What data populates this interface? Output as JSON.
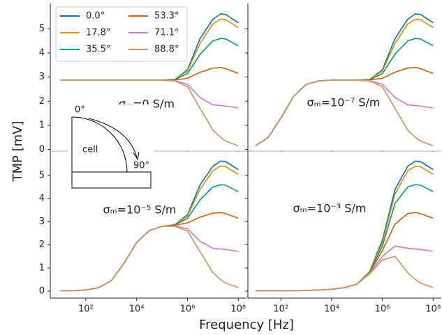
{
  "figure": {
    "xlabel": "Frequency [Hz]",
    "ylabel": "TMP [mV]"
  },
  "inset": {
    "start_label": "0°",
    "end_label": "90°",
    "cell_label": "cell"
  },
  "chart_data": [
    {
      "type": "line",
      "annotation": "σₘ=0 S/m",
      "x_scale": "log",
      "legend": "upper left",
      "xtick_labels": false,
      "ytick_labels": true,
      "xlim": [
        4,
        210000000
      ],
      "ylim": [
        -0.3,
        6.05
      ],
      "xticks": [
        {
          "value": 100,
          "label": "10²"
        },
        {
          "value": 10000,
          "label": "10⁴"
        },
        {
          "value": 1000000,
          "label": "10⁶"
        },
        {
          "value": 100000000,
          "label": "10⁸"
        }
      ],
      "yticks": [
        0,
        1,
        2,
        3,
        4,
        5
      ],
      "x": [
        10,
        31.6,
        100,
        316,
        1000,
        3160,
        10000,
        31600,
        100000,
        316000,
        1000000,
        3160000,
        10000000,
        20000000,
        31600000,
        100000000
      ],
      "series": [
        {
          "name": "0.0°",
          "color": "#0173b2",
          "values": [
            2.87,
            2.87,
            2.87,
            2.87,
            2.87,
            2.87,
            2.87,
            2.87,
            2.87,
            2.9,
            3.3,
            4.6,
            5.4,
            5.62,
            5.6,
            5.25
          ]
        },
        {
          "name": "17.8°",
          "color": "#de8f05",
          "values": [
            2.87,
            2.87,
            2.87,
            2.87,
            2.87,
            2.87,
            2.87,
            2.87,
            2.87,
            2.9,
            3.25,
            4.4,
            5.2,
            5.4,
            5.38,
            5.05
          ]
        },
        {
          "name": "35.5°",
          "color": "#029e73",
          "values": [
            2.87,
            2.87,
            2.87,
            2.87,
            2.87,
            2.87,
            2.87,
            2.87,
            2.87,
            2.89,
            3.15,
            3.95,
            4.5,
            4.6,
            4.58,
            4.3
          ]
        },
        {
          "name": "53.3°",
          "color": "#d55e00",
          "values": [
            2.87,
            2.87,
            2.87,
            2.87,
            2.87,
            2.87,
            2.87,
            2.87,
            2.87,
            2.88,
            2.95,
            3.2,
            3.37,
            3.4,
            3.35,
            3.15
          ]
        },
        {
          "name": "71.1°",
          "color": "#cc78bc",
          "values": [
            2.87,
            2.87,
            2.87,
            2.87,
            2.87,
            2.87,
            2.87,
            2.87,
            2.87,
            2.85,
            2.7,
            2.15,
            1.85,
            1.82,
            1.8,
            1.72
          ]
        },
        {
          "name": "88.8°",
          "color": "#ca9161",
          "values": [
            2.87,
            2.87,
            2.87,
            2.87,
            2.87,
            2.87,
            2.87,
            2.87,
            2.87,
            2.84,
            2.6,
            1.7,
            0.8,
            0.5,
            0.35,
            0.15
          ]
        }
      ]
    },
    {
      "type": "line",
      "annotation": "σₘ=10⁻⁷ S/m",
      "x_scale": "log",
      "xtick_labels": false,
      "ytick_labels": false,
      "xlim": [
        5,
        210000000
      ],
      "ylim": [
        -0.3,
        6.05
      ],
      "xticks": [
        {
          "value": 100,
          "label": "10²"
        },
        {
          "value": 10000,
          "label": "10⁴"
        },
        {
          "value": 1000000,
          "label": "10⁶"
        },
        {
          "value": 100000000,
          "label": "10⁸"
        }
      ],
      "yticks": [
        0,
        1,
        2,
        3,
        4,
        5
      ],
      "x": [
        10,
        31.6,
        100,
        316,
        1000,
        3160,
        10000,
        31600,
        100000,
        316000,
        1000000,
        3160000,
        10000000,
        20000000,
        31600000,
        100000000
      ],
      "series": [
        {
          "color": "#0173b2",
          "values": [
            0.15,
            0.5,
            1.3,
            2.2,
            2.7,
            2.84,
            2.87,
            2.87,
            2.87,
            2.9,
            3.3,
            4.6,
            5.4,
            5.62,
            5.6,
            5.25
          ]
        },
        {
          "color": "#de8f05",
          "values": [
            0.15,
            0.5,
            1.3,
            2.2,
            2.7,
            2.84,
            2.87,
            2.87,
            2.87,
            2.9,
            3.25,
            4.4,
            5.2,
            5.4,
            5.38,
            5.05
          ]
        },
        {
          "color": "#029e73",
          "values": [
            0.15,
            0.5,
            1.3,
            2.2,
            2.7,
            2.84,
            2.87,
            2.87,
            2.87,
            2.89,
            3.15,
            3.95,
            4.5,
            4.6,
            4.58,
            4.3
          ]
        },
        {
          "color": "#d55e00",
          "values": [
            0.15,
            0.5,
            1.3,
            2.2,
            2.7,
            2.84,
            2.87,
            2.87,
            2.87,
            2.88,
            2.95,
            3.2,
            3.37,
            3.4,
            3.35,
            3.15
          ]
        },
        {
          "color": "#cc78bc",
          "values": [
            0.15,
            0.5,
            1.3,
            2.2,
            2.7,
            2.84,
            2.87,
            2.87,
            2.87,
            2.85,
            2.7,
            2.15,
            1.85,
            1.82,
            1.8,
            1.72
          ]
        },
        {
          "color": "#ca9161",
          "values": [
            0.15,
            0.5,
            1.3,
            2.2,
            2.7,
            2.84,
            2.87,
            2.87,
            2.87,
            2.84,
            2.6,
            1.7,
            0.8,
            0.5,
            0.35,
            0.15
          ]
        }
      ]
    },
    {
      "type": "line",
      "annotation": "σₘ=10⁻⁵ S/m",
      "x_scale": "log",
      "xtick_labels": true,
      "ytick_labels": true,
      "xlim": [
        4,
        210000000
      ],
      "ylim": [
        -0.3,
        6.05
      ],
      "xticks": [
        {
          "value": 100,
          "label": "10²"
        },
        {
          "value": 10000,
          "label": "10⁴"
        },
        {
          "value": 1000000,
          "label": "10⁶"
        },
        {
          "value": 100000000,
          "label": "10⁸"
        }
      ],
      "yticks": [
        0,
        1,
        2,
        3,
        4,
        5
      ],
      "x": [
        10,
        31.6,
        100,
        316,
        1000,
        3160,
        10000,
        31600,
        100000,
        316000,
        1000000,
        3160000,
        10000000,
        20000000,
        31600000,
        100000000
      ],
      "series": [
        {
          "color": "#0173b2",
          "values": [
            0.02,
            0.02,
            0.05,
            0.15,
            0.45,
            1.2,
            2.1,
            2.62,
            2.8,
            2.87,
            3.3,
            4.6,
            5.4,
            5.62,
            5.6,
            5.25
          ]
        },
        {
          "color": "#de8f05",
          "values": [
            0.02,
            0.02,
            0.05,
            0.15,
            0.45,
            1.2,
            2.1,
            2.62,
            2.8,
            2.87,
            3.25,
            4.4,
            5.2,
            5.4,
            5.38,
            5.05
          ]
        },
        {
          "color": "#029e73",
          "values": [
            0.02,
            0.02,
            0.05,
            0.15,
            0.45,
            1.2,
            2.1,
            2.62,
            2.8,
            2.86,
            3.15,
            3.95,
            4.5,
            4.6,
            4.58,
            4.3
          ]
        },
        {
          "color": "#d55e00",
          "values": [
            0.02,
            0.02,
            0.05,
            0.15,
            0.45,
            1.2,
            2.1,
            2.62,
            2.8,
            2.85,
            2.95,
            3.2,
            3.37,
            3.4,
            3.35,
            3.15
          ]
        },
        {
          "color": "#cc78bc",
          "values": [
            0.02,
            0.02,
            0.05,
            0.15,
            0.45,
            1.2,
            2.1,
            2.62,
            2.8,
            2.82,
            2.7,
            2.15,
            1.85,
            1.82,
            1.8,
            1.72
          ]
        },
        {
          "color": "#ca9161",
          "values": [
            0.02,
            0.02,
            0.05,
            0.15,
            0.45,
            1.2,
            2.1,
            2.62,
            2.8,
            2.8,
            2.6,
            1.7,
            0.8,
            0.5,
            0.35,
            0.15
          ]
        }
      ]
    },
    {
      "type": "line",
      "annotation": "σₘ=10⁻³ S/m",
      "x_scale": "log",
      "xtick_labels": true,
      "ytick_labels": false,
      "xlim": [
        5,
        210000000
      ],
      "ylim": [
        -0.3,
        6.05
      ],
      "xticks": [
        {
          "value": 100,
          "label": "10²"
        },
        {
          "value": 10000,
          "label": "10⁴"
        },
        {
          "value": 1000000,
          "label": "10⁶"
        },
        {
          "value": 100000000,
          "label": "10⁸"
        }
      ],
      "yticks": [
        0,
        1,
        2,
        3,
        4,
        5
      ],
      "x": [
        10,
        31.6,
        100,
        316,
        1000,
        3160,
        10000,
        31600,
        100000,
        316000,
        1000000,
        3160000,
        10000000,
        20000000,
        31600000,
        100000000
      ],
      "series": [
        {
          "color": "#0173b2",
          "values": [
            0.02,
            0.02,
            0.02,
            0.02,
            0.03,
            0.05,
            0.08,
            0.15,
            0.3,
            0.85,
            2.2,
            4.4,
            5.4,
            5.62,
            5.6,
            5.25
          ]
        },
        {
          "color": "#de8f05",
          "values": [
            0.02,
            0.02,
            0.02,
            0.02,
            0.03,
            0.05,
            0.08,
            0.15,
            0.3,
            0.84,
            2.1,
            4.2,
            5.2,
            5.4,
            5.38,
            5.05
          ]
        },
        {
          "color": "#029e73",
          "values": [
            0.02,
            0.02,
            0.02,
            0.02,
            0.03,
            0.05,
            0.08,
            0.15,
            0.3,
            0.82,
            1.95,
            3.8,
            4.5,
            4.6,
            4.58,
            4.3
          ]
        },
        {
          "color": "#d55e00",
          "values": [
            0.02,
            0.02,
            0.02,
            0.02,
            0.03,
            0.05,
            0.08,
            0.15,
            0.3,
            0.8,
            1.75,
            2.9,
            3.35,
            3.4,
            3.35,
            3.15
          ]
        },
        {
          "color": "#cc78bc",
          "values": [
            0.02,
            0.02,
            0.02,
            0.02,
            0.03,
            0.05,
            0.08,
            0.15,
            0.3,
            0.78,
            1.5,
            1.95,
            1.85,
            1.82,
            1.8,
            1.72
          ]
        },
        {
          "color": "#ca9161",
          "values": [
            0.02,
            0.02,
            0.02,
            0.02,
            0.03,
            0.05,
            0.08,
            0.15,
            0.3,
            0.75,
            1.35,
            1.5,
            0.8,
            0.5,
            0.35,
            0.15
          ]
        }
      ]
    }
  ]
}
